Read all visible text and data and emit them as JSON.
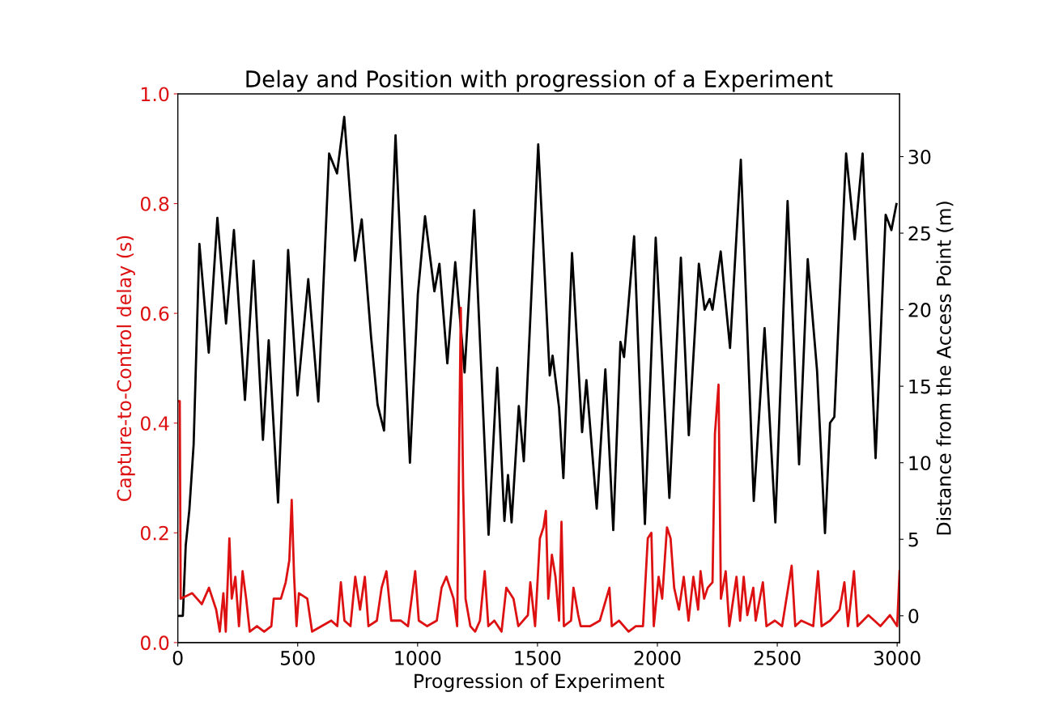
{
  "chart_data": {
    "type": "line",
    "title": "Delay and Position with progression of a Experiment",
    "xlabel": "Progression of Experiment",
    "ylabel": "Capture-to-Control delay (s)",
    "y2label": "Distance from the Access Point (m)",
    "xlim": [
      0,
      3010
    ],
    "xticks": [
      0,
      500,
      1000,
      1500,
      2000,
      2500,
      3000
    ],
    "ylim": [
      0,
      1
    ],
    "yticks": [
      {
        "value": 0,
        "label": "0.0"
      },
      {
        "value": 0.2,
        "label": "0.2"
      },
      {
        "value": 0.4,
        "label": "0.4"
      },
      {
        "value": 0.6,
        "label": "0.6"
      },
      {
        "value": 0.8,
        "label": "0.8"
      },
      {
        "value": 1,
        "label": "1.0"
      }
    ],
    "y2lim": [
      -1.75,
      34.1
    ],
    "y2ticks": [
      0,
      5,
      10,
      15,
      20,
      25,
      30
    ],
    "grid": false,
    "line_style": "solid",
    "marker": "none",
    "series": [
      {
        "color": "#dd1111",
        "axis": "y",
        "x": [
          0,
          8,
          12,
          60,
          100,
          130,
          160,
          175,
          190,
          200,
          215,
          225,
          240,
          255,
          270,
          285,
          300,
          330,
          360,
          390,
          400,
          430,
          450,
          465,
          475,
          485,
          495,
          505,
          540,
          560,
          600,
          640,
          665,
          680,
          695,
          720,
          740,
          760,
          780,
          795,
          830,
          850,
          870,
          890,
          930,
          960,
          990,
          1005,
          1040,
          1080,
          1100,
          1120,
          1150,
          1165,
          1180,
          1190,
          1200,
          1220,
          1240,
          1260,
          1280,
          1295,
          1320,
          1350,
          1370,
          1400,
          1420,
          1460,
          1470,
          1490,
          1510,
          1525,
          1535,
          1545,
          1560,
          1575,
          1590,
          1600,
          1610,
          1640,
          1650,
          1670,
          1680,
          1720,
          1760,
          1800,
          1810,
          1840,
          1880,
          1910,
          1940,
          1960,
          1975,
          1985,
          2005,
          2020,
          2040,
          2055,
          2070,
          2090,
          2110,
          2130,
          2150,
          2170,
          2180,
          2195,
          2210,
          2230,
          2240,
          2255,
          2265,
          2285,
          2300,
          2330,
          2345,
          2360,
          2375,
          2400,
          2410,
          2440,
          2455,
          2490,
          2520,
          2560,
          2575,
          2600,
          2650,
          2670,
          2685,
          2720,
          2760,
          2780,
          2795,
          2820,
          2835,
          2880,
          2930,
          2970,
          3000,
          3010
        ],
        "values": [
          0.44,
          0.44,
          0.08,
          0.09,
          0.07,
          0.1,
          0.06,
          0.02,
          0.09,
          0.02,
          0.19,
          0.08,
          0.12,
          0.03,
          0.13,
          0.08,
          0.02,
          0.03,
          0.02,
          0.03,
          0.08,
          0.08,
          0.11,
          0.15,
          0.26,
          0.12,
          0.03,
          0.09,
          0.08,
          0.02,
          0.03,
          0.04,
          0.03,
          0.11,
          0.04,
          0.03,
          0.12,
          0.06,
          0.12,
          0.03,
          0.04,
          0.1,
          0.13,
          0.04,
          0.04,
          0.03,
          0.13,
          0.04,
          0.03,
          0.04,
          0.1,
          0.12,
          0.08,
          0.03,
          0.61,
          0.28,
          0.08,
          0.03,
          0.02,
          0.04,
          0.13,
          0.03,
          0.04,
          0.02,
          0.1,
          0.08,
          0.03,
          0.05,
          0.11,
          0.03,
          0.19,
          0.21,
          0.24,
          0.08,
          0.16,
          0.12,
          0.04,
          0.22,
          0.03,
          0.04,
          0.1,
          0.05,
          0.03,
          0.03,
          0.04,
          0.1,
          0.03,
          0.04,
          0.02,
          0.03,
          0.03,
          0.19,
          0.2,
          0.03,
          0.12,
          0.08,
          0.21,
          0.19,
          0.1,
          0.06,
          0.12,
          0.04,
          0.12,
          0.06,
          0.13,
          0.08,
          0.1,
          0.11,
          0.38,
          0.47,
          0.08,
          0.13,
          0.03,
          0.12,
          0.04,
          0.12,
          0.05,
          0.1,
          0.04,
          0.11,
          0.03,
          0.04,
          0.03,
          0.14,
          0.03,
          0.04,
          0.03,
          0.13,
          0.03,
          0.04,
          0.06,
          0.11,
          0.03,
          0.13,
          0.03,
          0.05,
          0.03,
          0.05,
          0.03,
          0.13
        ]
      },
      {
        "color": "#000000",
        "axis": "y2",
        "x": [
          0,
          21,
          33,
          48,
          66,
          90,
          129,
          165,
          201,
          234,
          280,
          316,
          355,
          379,
          418,
          460,
          499,
          544,
          586,
          631,
          664,
          694,
          739,
          767,
          806,
          833,
          860,
          908,
          968,
          1001,
          1031,
          1070,
          1091,
          1124,
          1157,
          1196,
          1236,
          1296,
          1332,
          1362,
          1377,
          1392,
          1422,
          1443,
          1503,
          1551,
          1563,
          1590,
          1608,
          1644,
          1686,
          1704,
          1747,
          1783,
          1816,
          1846,
          1861,
          1903,
          1948,
          1993,
          2050,
          2098,
          2131,
          2173,
          2197,
          2218,
          2230,
          2264,
          2303,
          2348,
          2402,
          2447,
          2492,
          2543,
          2591,
          2627,
          2666,
          2699,
          2720,
          2738,
          2787,
          2823,
          2856,
          2910,
          2952,
          2976,
          2997
        ],
        "values": [
          0,
          0,
          4.6,
          6.9,
          11.2,
          24.3,
          17.2,
          26.0,
          19.1,
          25.2,
          14.1,
          23.2,
          11.5,
          18.0,
          7.4,
          23.9,
          14.4,
          22.0,
          14.0,
          30.2,
          28.9,
          32.6,
          23.2,
          25.9,
          18.2,
          13.8,
          12.1,
          31.4,
          10.0,
          21.0,
          26.1,
          21.2,
          23.0,
          16.5,
          23.1,
          15.9,
          26.5,
          5.3,
          16.2,
          6.2,
          9.2,
          6.1,
          13.7,
          10.1,
          30.8,
          15.7,
          17.0,
          13.6,
          9.0,
          23.7,
          12.0,
          15.4,
          7.0,
          16.1,
          5.6,
          17.9,
          16.9,
          24.8,
          6.0,
          24.7,
          7.7,
          23.4,
          11.8,
          23.0,
          20.0,
          20.7,
          20.0,
          23.8,
          17.5,
          29.8,
          7.5,
          18.8,
          6.1,
          27.1,
          9.9,
          23.3,
          16.0,
          5.4,
          12.6,
          13.0,
          30.2,
          24.6,
          30.2,
          10.3,
          26.2,
          25.2,
          26.9
        ]
      }
    ]
  }
}
